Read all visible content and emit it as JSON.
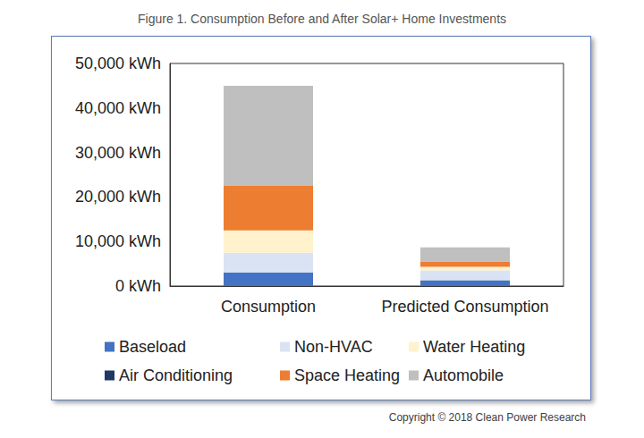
{
  "chart_data": {
    "type": "bar",
    "title": "Figure 1. Consumption Before and After Solar+ Home Investments",
    "annotations": [
      "Copyright © 2018 Clean Power Research"
    ],
    "categories": [
      "Consumption",
      "Predicted Consumption"
    ],
    "stacked": true,
    "grid": false,
    "legend": "bottom",
    "ylim": [
      0,
      50000
    ],
    "yticks": [
      {
        "value": 0,
        "label": "0 kWh"
      },
      {
        "value": 10000,
        "label": "10,000 kWh"
      },
      {
        "value": 20000,
        "label": "20,000 kWh"
      },
      {
        "value": 30000,
        "label": "30,000 kWh"
      },
      {
        "value": 40000,
        "label": "40,000 kWh"
      },
      {
        "value": 50000,
        "label": "50,000 kWh"
      }
    ],
    "series": [
      {
        "name": "Baseload",
        "color": "#4472c4",
        "values": [
          3000,
          1300
        ]
      },
      {
        "name": "Non-HVAC",
        "color": "#dae3f3",
        "values": [
          4500,
          2200
        ]
      },
      {
        "name": "Water Heating",
        "color": "#fff2cc",
        "values": [
          5000,
          800
        ]
      },
      {
        "name": "Air Conditioning",
        "color": "#203864",
        "values": [
          0,
          0
        ]
      },
      {
        "name": "Space Heating",
        "color": "#ed7d31",
        "values": [
          10000,
          1200
        ]
      },
      {
        "name": "Automobile",
        "color": "#bfbfbf",
        "values": [
          22500,
          3200
        ]
      }
    ]
  }
}
